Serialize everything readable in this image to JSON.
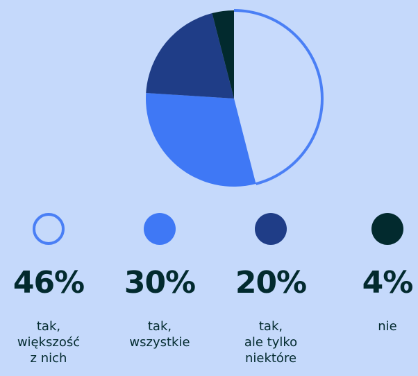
{
  "chart_data": {
    "type": "pie",
    "categories": [
      "tak,\nwiększość\nz nich",
      "tak,\nwszystkie",
      "tak,\nale tylko\nniektóre",
      "nie"
    ],
    "values": [
      46,
      30,
      20,
      4
    ],
    "value_labels": [
      "46%",
      "30%",
      "20%",
      "4%"
    ],
    "colors": [
      "#c7dafc",
      "#3f78f5",
      "#1f3d87",
      "#022a2e"
    ],
    "outline_color": "#4a7ff5"
  }
}
